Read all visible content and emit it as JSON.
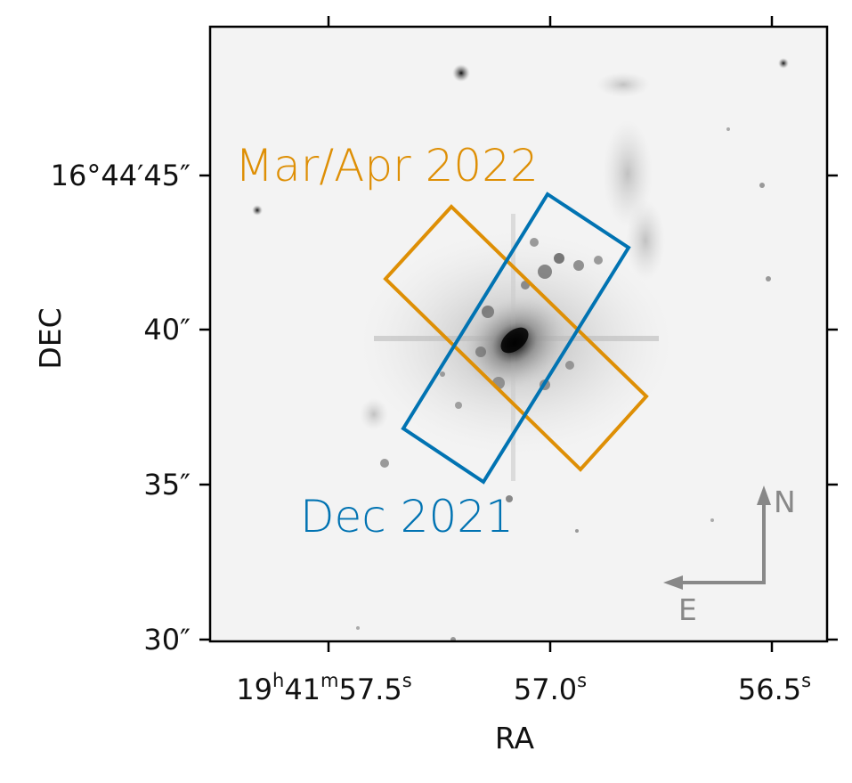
{
  "axes": {
    "xlabel": "RA",
    "ylabel": "DEC",
    "x_ticks": [
      {
        "value": 0,
        "prefix": "19",
        "sup1": "h",
        "mid": "41",
        "sup2": "m",
        "main": "57.5",
        "sup3": "s"
      },
      {
        "value": 1,
        "main": "57.0",
        "sup": "s"
      },
      {
        "value": 2,
        "main": "56.5",
        "sup": "s"
      }
    ],
    "y_ticks": [
      {
        "value": 45,
        "label": "16°44′45″"
      },
      {
        "value": 40,
        "label": "40″"
      },
      {
        "value": 35,
        "label": "35″"
      },
      {
        "value": 30,
        "label": "30″"
      }
    ]
  },
  "apertures": [
    {
      "name": "mar-apr-2022",
      "label": "Mar/Apr 2022",
      "color": "#DE8F05"
    },
    {
      "name": "dec-2021",
      "label": "Dec 2021",
      "color": "#0173B2"
    }
  ],
  "compass": {
    "north": "N",
    "east": "E",
    "color": "#888888"
  }
}
